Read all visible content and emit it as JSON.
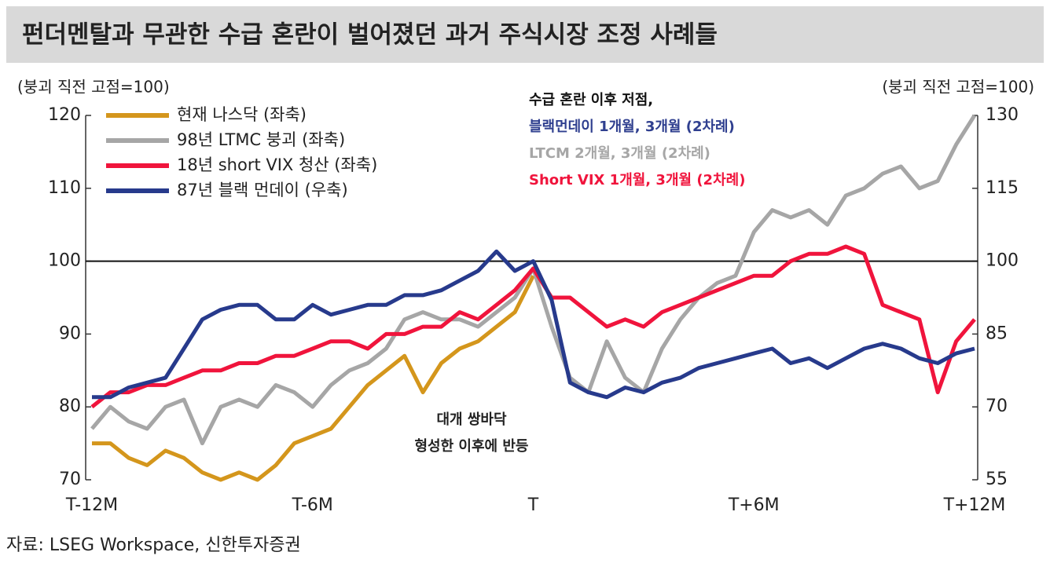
{
  "chart_data": {
    "type": "line",
    "title": "펀더멘탈과 무관한 수급 혼란이 벌어졌던 과거 주식시장 조정 사례들",
    "ylabel": "(붕괴 직전 고점=100)",
    "y2label": "(붕괴 직전 고점=100)",
    "source": "자료: LSEG Workspace, 신한투자증권",
    "xlim": [
      -12,
      12
    ],
    "xticks": [
      {
        "value": -12,
        "label": "T-12M"
      },
      {
        "value": -6,
        "label": "T-6M"
      },
      {
        "value": 0,
        "label": "T"
      },
      {
        "value": 6,
        "label": "T+6M"
      },
      {
        "value": 12,
        "label": "T+12M"
      }
    ],
    "ylim": [
      70,
      120
    ],
    "yticks": [
      70,
      80,
      90,
      100,
      110,
      120
    ],
    "y2lim": [
      55,
      130
    ],
    "y2ticks": [
      55,
      70,
      85,
      100,
      115,
      130
    ],
    "reference_line": 100,
    "x": [
      -12,
      -11.5,
      -11,
      -10.5,
      -10,
      -9.5,
      -9,
      -8.5,
      -8,
      -7.5,
      -7,
      -6.5,
      -6,
      -5.5,
      -5,
      -4.5,
      -4,
      -3.5,
      -3,
      -2.5,
      -2,
      -1.5,
      -1,
      -0.5,
      0,
      0.5,
      1,
      1.5,
      2,
      2.5,
      3,
      3.5,
      4,
      4.5,
      5,
      5.5,
      6,
      6.5,
      7,
      7.5,
      8,
      8.5,
      9,
      9.5,
      10,
      10.5,
      11,
      11.5,
      12
    ],
    "series": [
      {
        "name": "현재 나스닥 (좌축)",
        "color": "#d4961c",
        "values": [
          75,
          75,
          73,
          72,
          74,
          73,
          71,
          70,
          71,
          70,
          72,
          75,
          76,
          77,
          80,
          83,
          85,
          87,
          82,
          86,
          88,
          89,
          91,
          93,
          98,
          null,
          null,
          null,
          null,
          null,
          null,
          null,
          null,
          null,
          null,
          null,
          null,
          null,
          null,
          null,
          null,
          null,
          null,
          null,
          null,
          null,
          null,
          null,
          null
        ]
      },
      {
        "name": "98년 LTMC 붕괴 (좌축)",
        "color": "#a6a6a6",
        "values": [
          77,
          80,
          78,
          77,
          80,
          81,
          75,
          80,
          81,
          80,
          83,
          82,
          80,
          83,
          85,
          86,
          88,
          92,
          93,
          92,
          92,
          91,
          93,
          95,
          99,
          91,
          84,
          82,
          89,
          84,
          82,
          88,
          92,
          95,
          97,
          98,
          104,
          107,
          106,
          107,
          105,
          109,
          110,
          112,
          113,
          110,
          111,
          116,
          120
        ]
      },
      {
        "name": "18년 short VIX 청산 (좌축)",
        "color": "#f0143c",
        "values": [
          80,
          82,
          82,
          83,
          83,
          84,
          85,
          85,
          86,
          86,
          87,
          87,
          88,
          89,
          89,
          88,
          90,
          90,
          91,
          91,
          93,
          92,
          94,
          96,
          99,
          95,
          95,
          93,
          91,
          92,
          91,
          93,
          94,
          95,
          96,
          97,
          98,
          98,
          100,
          101,
          101,
          102,
          101,
          94,
          93,
          92,
          82,
          89,
          92
        ]
      },
      {
        "name": "87년 블랙 먼데이 (우축)",
        "color": "#273a8c",
        "axis": "y2",
        "values": [
          72,
          72,
          74,
          75,
          76,
          82,
          88,
          90,
          91,
          91,
          88,
          88,
          91,
          89,
          90,
          91,
          91,
          93,
          93,
          94,
          96,
          98,
          102,
          98,
          100,
          92,
          75,
          73,
          72,
          74,
          73,
          75,
          76,
          78,
          79,
          80,
          81,
          82,
          79,
          80,
          78,
          80,
          82,
          83,
          82,
          80,
          79,
          81,
          82
        ]
      }
    ],
    "annotations": [
      {
        "text": "수급 혼란 이후 저점,",
        "color": "#111111"
      },
      {
        "text": "블랙먼데이 1개월, 3개월 (2차례)",
        "color": "#2f3f8f"
      },
      {
        "text": "LTCM 2개월, 3개월 (2차례)",
        "color": "#a6a6a6"
      },
      {
        "text": "Short VIX 1개월, 3개월 (2차례)",
        "color": "#f0143c"
      }
    ],
    "note": [
      "대개 쌍바닥",
      "형성한 이후에 반등"
    ]
  }
}
